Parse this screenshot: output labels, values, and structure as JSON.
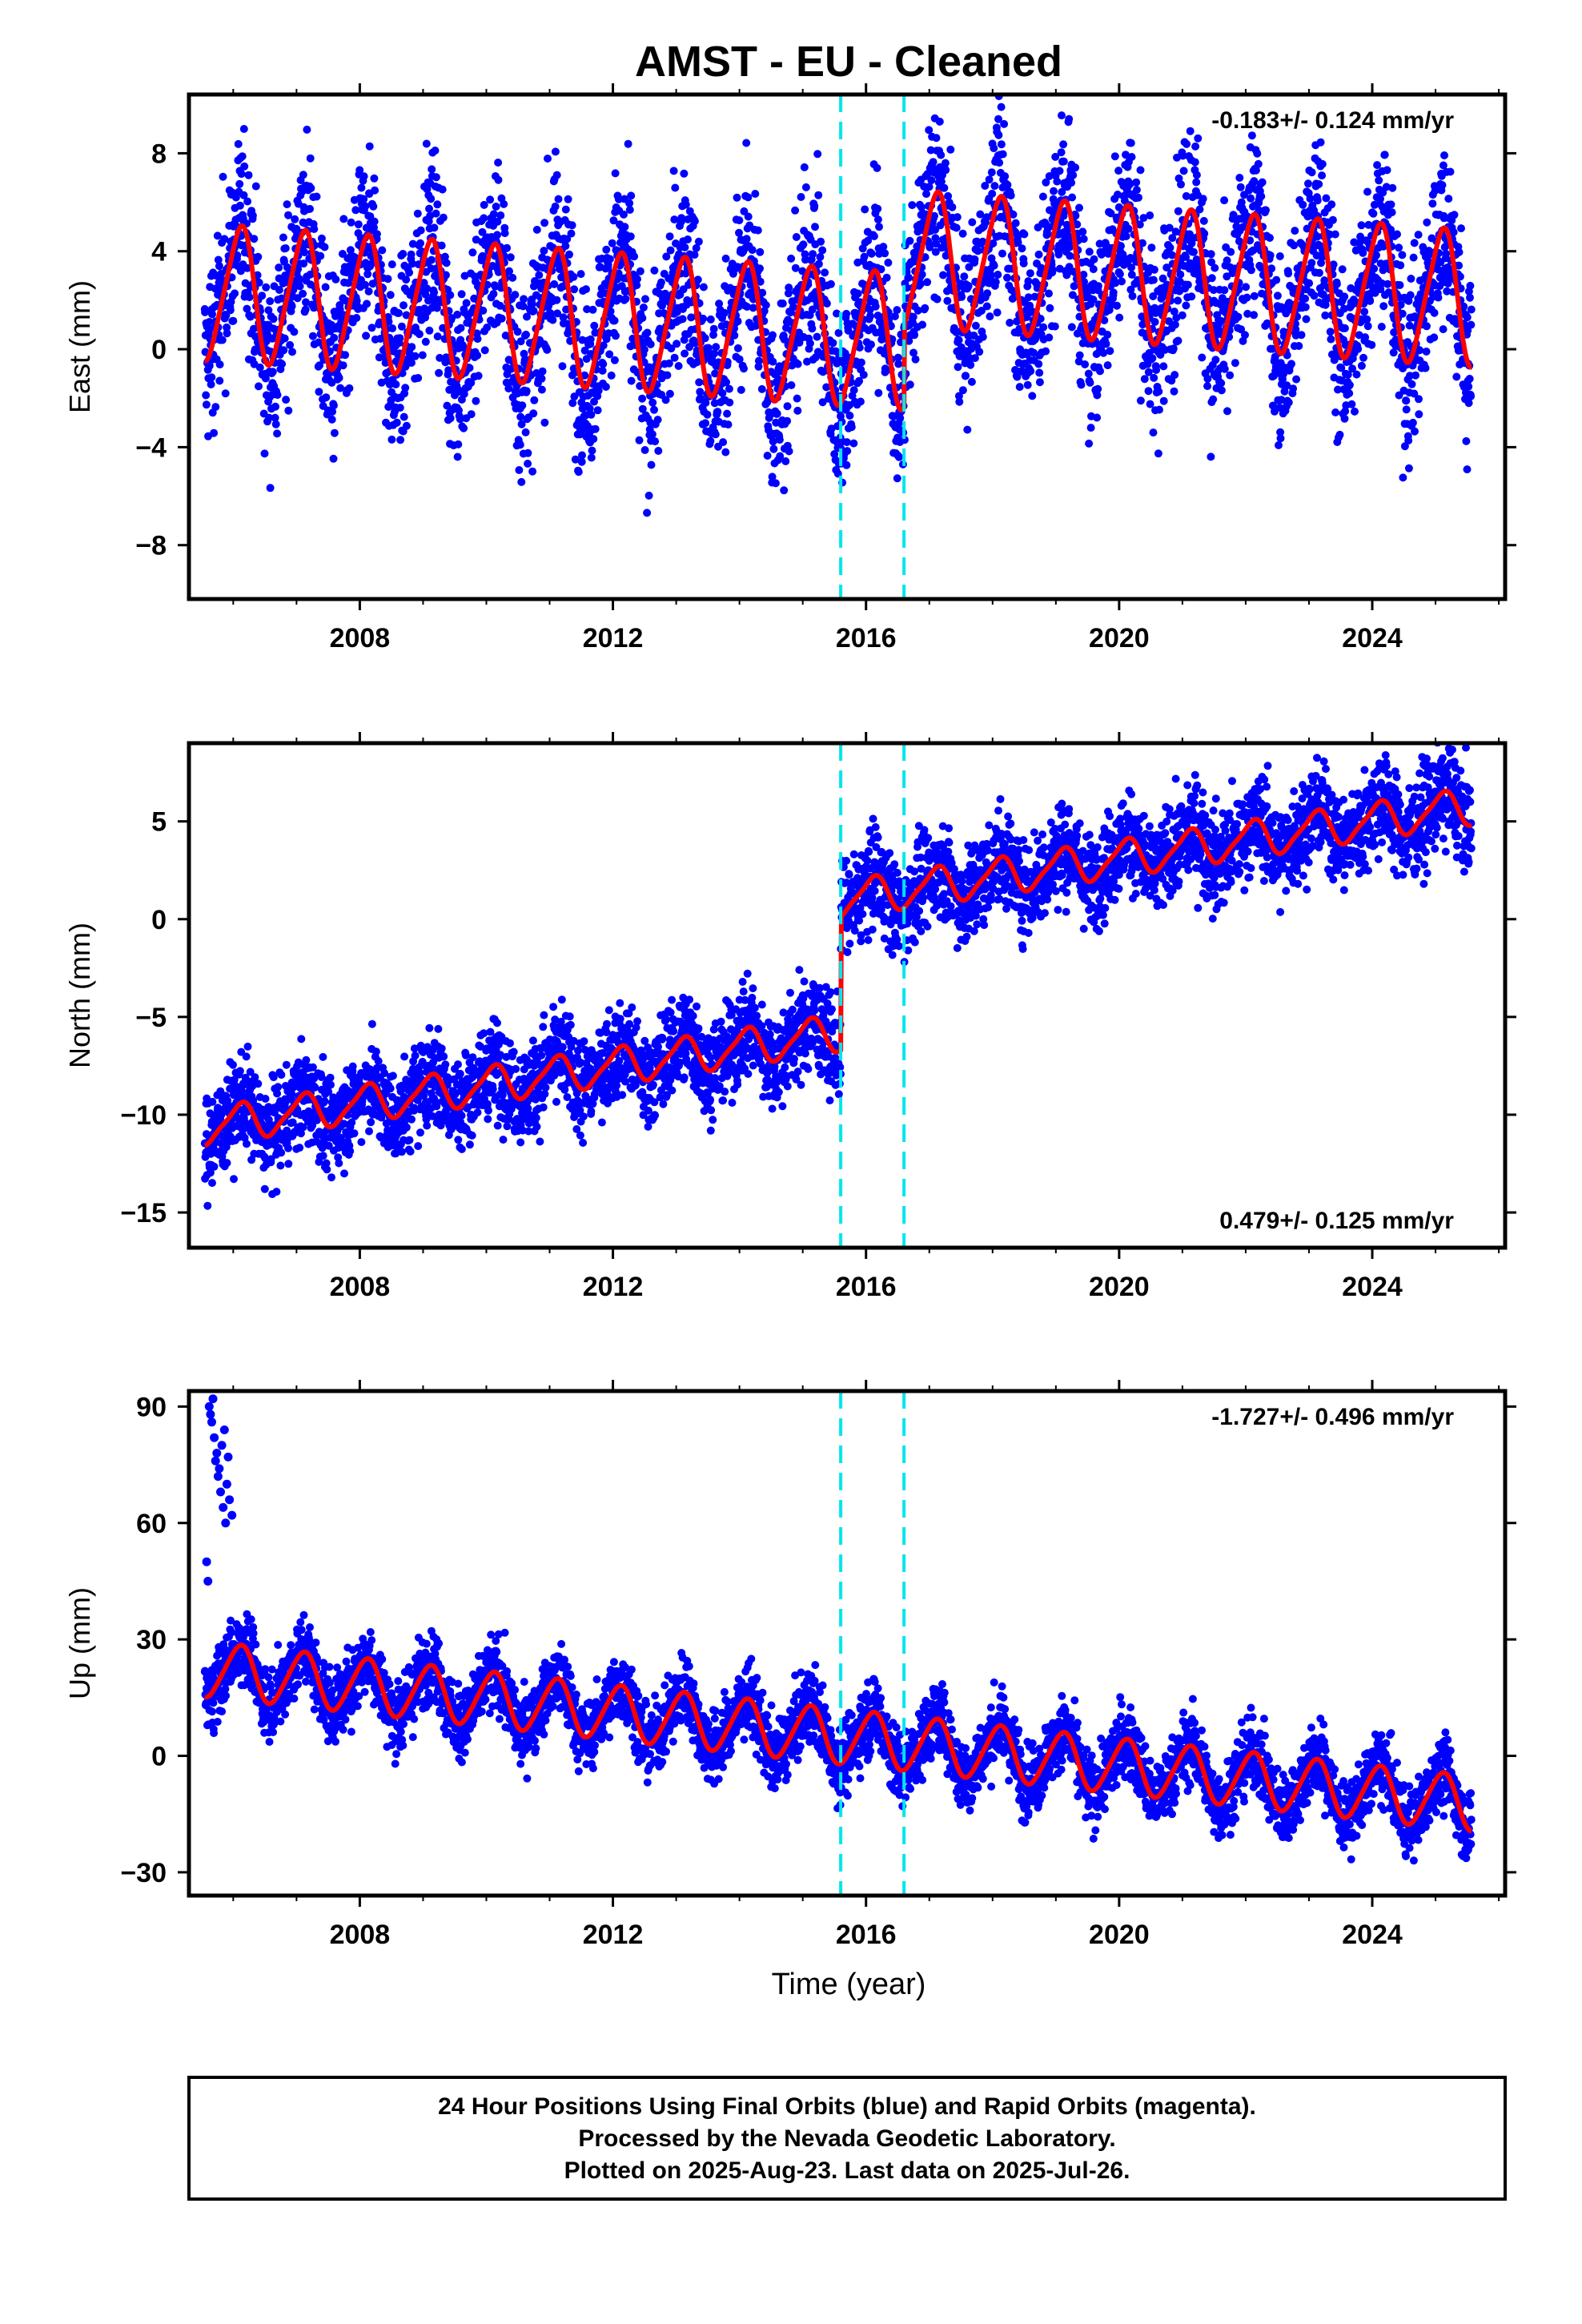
{
  "title": "AMST  - EU - Cleaned",
  "xlabel": "Time (year)",
  "footer": {
    "lines": [
      "24 Hour Positions Using Final Orbits (blue) and Rapid Orbits (magenta).",
      "Processed by the Nevada Geodetic Laboratory.",
      "Plotted on 2025-Aug-23. Last data on 2025-Jul-26."
    ]
  },
  "colors": {
    "points": "#0000ff",
    "model": "#ff0000",
    "breaks": "#00e5ee",
    "frame": "#000000"
  },
  "chart_data": [
    {
      "type": "scatter",
      "ylabel": "East (mm)",
      "xlim": [
        2005.3,
        2026.1
      ],
      "ylim": [
        -10.2,
        10.4
      ],
      "xticks": [
        2008,
        2012,
        2016,
        2020,
        2024
      ],
      "xtick_labels": [
        "2008",
        "2012",
        "2016",
        "2020",
        "2024"
      ],
      "yticks": [
        -8,
        -4,
        0,
        4,
        8
      ],
      "ytick_labels": [
        "−8",
        "−4",
        "0",
        "4",
        "8"
      ],
      "annotation": "-0.183+/- 0.124 mm/yr",
      "annotation_position": "top-right",
      "rate": -0.183,
      "offset": 0.5,
      "annual_amplitude": 2.7,
      "semiannual_amplitude": 0.4,
      "scatter_spread": 4.8,
      "steps": [
        {
          "t": 2016.6,
          "size": 3.4
        }
      ],
      "break_lines": [
        2015.6,
        2016.6
      ],
      "data_start": 2005.55,
      "data_end": 2025.57
    },
    {
      "type": "scatter",
      "ylabel": "North (mm)",
      "xlim": [
        2005.3,
        2026.1
      ],
      "ylim": [
        -16.8,
        9.0
      ],
      "xticks": [
        2008,
        2012,
        2016,
        2020,
        2024
      ],
      "xtick_labels": [
        "2008",
        "2012",
        "2016",
        "2020",
        "2024"
      ],
      "yticks": [
        -15,
        -10,
        -5,
        0,
        5
      ],
      "ytick_labels": [
        "−15",
        "−10",
        "−5",
        "0",
        "5"
      ],
      "annotation": "0.479+/- 0.125 mm/yr",
      "annotation_position": "bottom-right",
      "rate": 0.479,
      "offset": -5.8,
      "annual_amplitude": 0.9,
      "semiannual_amplitude": 0.2,
      "scatter_spread": 3.2,
      "steps": [
        {
          "t": 2015.6,
          "size": 6.8
        }
      ],
      "break_lines": [
        2015.6,
        2016.6
      ],
      "data_start": 2005.55,
      "data_end": 2025.57
    },
    {
      "type": "scatter",
      "ylabel": "Up (mm)",
      "xlim": [
        2005.3,
        2026.1
      ],
      "ylim": [
        -36,
        94
      ],
      "xticks": [
        2008,
        2012,
        2016,
        2020,
        2024
      ],
      "xtick_labels": [
        "2008",
        "2012",
        "2016",
        "2020",
        "2024"
      ],
      "yticks": [
        -30,
        0,
        30,
        60,
        90
      ],
      "ytick_labels": [
        "−30",
        "0",
        "30",
        "60",
        "90"
      ],
      "annotation": "-1.727+/- 0.496 mm/yr",
      "annotation_position": "top-right",
      "rate": -1.727,
      "offset": 5.0,
      "annual_amplitude": 7.0,
      "semiannual_amplitude": 0.8,
      "scatter_spread": 12,
      "steps": [],
      "break_lines": [
        2015.6,
        2016.6
      ],
      "data_start": 2005.55,
      "data_end": 2025.57,
      "early_outliers": [
        {
          "t": 2005.62,
          "y": 90
        },
        {
          "t": 2005.66,
          "y": 86
        },
        {
          "t": 2005.7,
          "y": 82
        },
        {
          "t": 2005.74,
          "y": 78
        },
        {
          "t": 2005.78,
          "y": 74
        },
        {
          "t": 2005.82,
          "y": 80
        },
        {
          "t": 2005.86,
          "y": 84
        },
        {
          "t": 2005.9,
          "y": 70
        },
        {
          "t": 2005.94,
          "y": 66
        },
        {
          "t": 2005.98,
          "y": 62
        },
        {
          "t": 2005.58,
          "y": 50
        },
        {
          "t": 2005.6,
          "y": 45
        },
        {
          "t": 2005.64,
          "y": 88
        },
        {
          "t": 2005.68,
          "y": 92
        },
        {
          "t": 2005.72,
          "y": 76
        },
        {
          "t": 2005.76,
          "y": 72
        },
        {
          "t": 2005.8,
          "y": 68
        },
        {
          "t": 2005.84,
          "y": 64
        },
        {
          "t": 2005.88,
          "y": 60
        },
        {
          "t": 2005.92,
          "y": 77
        }
      ]
    }
  ]
}
